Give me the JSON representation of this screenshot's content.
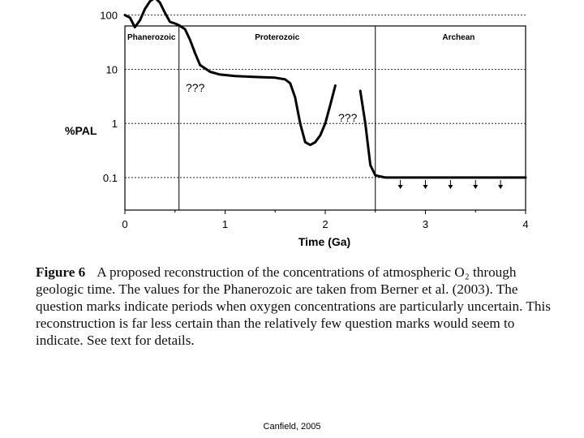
{
  "chart_data": {
    "type": "line",
    "title": "",
    "xlabel": "Time (Ga)",
    "ylabel": "%PAL",
    "xlim": [
      0,
      4
    ],
    "ylim_log10": [
      -1.6,
      1.8
    ],
    "x_ticks": [
      "0",
      "1",
      "2",
      "3",
      "4"
    ],
    "y_ticks": [
      "100",
      "10",
      "1",
      "0.1"
    ],
    "y_tick_values": [
      100,
      10,
      1,
      0.1
    ],
    "eras": [
      {
        "name": "Phanerozoic",
        "start": 0,
        "end": 0.54
      },
      {
        "name": "Proterozoic",
        "start": 0.54,
        "end": 2.5
      },
      {
        "name": "Archean",
        "start": 2.5,
        "end": 4
      }
    ],
    "annotations": [
      "???",
      "???"
    ],
    "series": [
      {
        "name": "Phanerozoic",
        "x": [
          0.0,
          0.05,
          0.1,
          0.15,
          0.2,
          0.25,
          0.3,
          0.35,
          0.4,
          0.45,
          0.5,
          0.54,
          0.6,
          0.65,
          0.7,
          0.75
        ],
        "y": [
          100,
          90,
          60,
          80,
          130,
          180,
          210,
          170,
          110,
          75,
          70,
          65,
          55,
          35,
          20,
          12
        ]
      },
      {
        "name": "Proterozoic",
        "x": [
          0.75,
          0.85,
          0.95,
          1.1,
          1.3,
          1.5,
          1.6,
          1.65,
          1.7,
          1.75,
          1.8,
          1.85,
          1.9,
          1.95,
          2.0,
          2.05,
          2.1
        ],
        "y": [
          12,
          9,
          8,
          7.5,
          7.2,
          7,
          6.5,
          5.5,
          3,
          1.0,
          0.45,
          0.4,
          0.45,
          0.6,
          1.0,
          2.2,
          5
        ]
      },
      {
        "name": "Archean",
        "x": [
          2.35,
          2.4,
          2.45,
          2.5,
          2.6,
          3.0,
          3.5,
          4.0
        ],
        "y": [
          4,
          1.0,
          0.17,
          0.11,
          0.1,
          0.1,
          0.1,
          0.1
        ]
      }
    ],
    "arrows_x": [
      2.75,
      3.0,
      3.25,
      3.5,
      3.75
    ]
  },
  "caption": {
    "label": "Figure 6",
    "text": "A proposed reconstruction of the concentrations of atmospheric O₂ through geologic time. The values for the Phanerozoic are taken from Berner et al. (2003). The question marks indicate periods when oxygen concentrations are particularly uncertain. This reconstruction is far less certain than the relatively few question marks would seem to indicate. See text for details."
  },
  "credit": "Canfield, 2005"
}
